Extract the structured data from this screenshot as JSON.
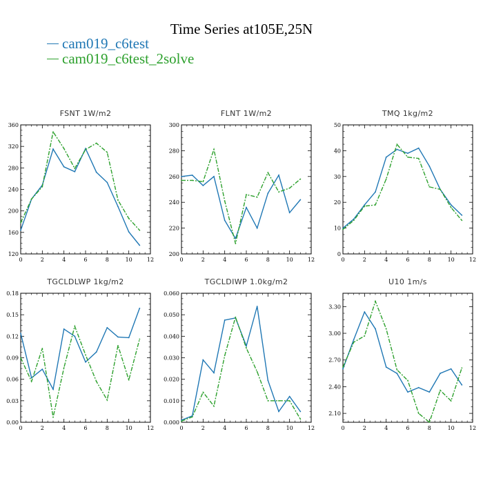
{
  "title": "Time Series at105E,25N",
  "legend": [
    {
      "name": "cam019_c6test",
      "color": "#1f77b4"
    },
    {
      "name": "cam019_c6test_2solve",
      "color": "#2ca02c"
    }
  ],
  "chart_data": [
    {
      "type": "line",
      "title": "FSNT  1W/m2",
      "xlim": [
        0,
        12
      ],
      "ylim": [
        120,
        360
      ],
      "x": [
        0,
        1,
        2,
        3,
        4,
        5,
        6,
        7,
        8,
        9,
        10,
        11
      ],
      "xticks": [
        0,
        2,
        4,
        6,
        8,
        10,
        12
      ],
      "xtick_labels": [
        "0",
        "2",
        "4",
        "6",
        "8",
        "10",
        "12"
      ],
      "yticks": [
        120,
        160,
        200,
        240,
        280,
        320,
        360
      ],
      "ytick_labels": [
        "120",
        "160",
        "200",
        "240",
        "280",
        "320",
        "360"
      ],
      "series": [
        {
          "name": "cam019_c6test",
          "values": [
            164,
            222,
            248,
            315,
            282,
            273,
            316,
            272,
            253,
            208,
            161,
            136
          ]
        },
        {
          "name": "cam019_c6test_2solve",
          "values": [
            178,
            222,
            245,
            347,
            316,
            279,
            314,
            326,
            309,
            220,
            186,
            164
          ]
        }
      ]
    },
    {
      "type": "line",
      "title": "FLNT  1W/m2",
      "xlim": [
        0,
        12
      ],
      "ylim": [
        200,
        300
      ],
      "x": [
        0,
        1,
        2,
        3,
        4,
        5,
        6,
        7,
        8,
        9,
        10,
        11
      ],
      "xticks": [
        0,
        2,
        4,
        6,
        8,
        10,
        12
      ],
      "xtick_labels": [
        "0",
        "2",
        "4",
        "6",
        "8",
        "10",
        "12"
      ],
      "yticks": [
        200,
        220,
        240,
        260,
        280,
        300
      ],
      "ytick_labels": [
        "200",
        "220",
        "240",
        "260",
        "280",
        "300"
      ],
      "series": [
        {
          "name": "cam019_c6test",
          "values": [
            260,
            261,
            253,
            260,
            226,
            212,
            236,
            220,
            247,
            261,
            232,
            242
          ]
        },
        {
          "name": "cam019_c6test_2solve",
          "values": [
            257,
            257,
            256,
            281,
            241,
            208,
            246,
            244,
            263,
            248,
            251,
            258
          ]
        }
      ]
    },
    {
      "type": "line",
      "title": "TMQ  1kg/m2",
      "xlim": [
        0,
        12
      ],
      "ylim": [
        0,
        50
      ],
      "x": [
        0,
        1,
        2,
        3,
        4,
        5,
        6,
        7,
        8,
        9,
        10,
        11
      ],
      "xticks": [
        0,
        2,
        4,
        6,
        8,
        10,
        12
      ],
      "xtick_labels": [
        "0",
        "2",
        "4",
        "6",
        "8",
        "10",
        "12"
      ],
      "yticks": [
        0,
        10,
        20,
        30,
        40,
        50
      ],
      "ytick_labels": [
        "0",
        "10",
        "20",
        "30",
        "40",
        "50"
      ],
      "series": [
        {
          "name": "cam019_c6test",
          "values": [
            10,
            13.5,
            19,
            24,
            37.5,
            40.5,
            39,
            41,
            34,
            25,
            19,
            15
          ]
        },
        {
          "name": "cam019_c6test_2solve",
          "values": [
            9.5,
            13,
            18.5,
            19,
            29,
            42.5,
            37.5,
            37,
            26,
            25,
            18,
            13
          ]
        }
      ]
    },
    {
      "type": "line",
      "title": "TGCLDLWP  1kg/m2",
      "xlim": [
        0,
        12
      ],
      "ylim": [
        0,
        0.18
      ],
      "x": [
        0,
        1,
        2,
        3,
        4,
        5,
        6,
        7,
        8,
        9,
        10,
        11
      ],
      "xticks": [
        0,
        2,
        4,
        6,
        8,
        10,
        12
      ],
      "xtick_labels": [
        "0",
        "2",
        "4",
        "6",
        "8",
        "10",
        "12"
      ],
      "yticks": [
        0,
        0.03,
        0.06,
        0.09,
        0.12,
        0.15,
        0.18
      ],
      "ytick_labels": [
        "0.00",
        "0.03",
        "0.06",
        "0.09",
        "0.12",
        "0.15",
        "0.18"
      ],
      "series": [
        {
          "name": "cam019_c6test",
          "values": [
            0.124,
            0.062,
            0.074,
            0.046,
            0.13,
            0.12,
            0.084,
            0.098,
            0.132,
            0.119,
            0.118,
            0.159
          ]
        },
        {
          "name": "cam019_c6test_2solve",
          "values": [
            0.09,
            0.057,
            0.103,
            0.007,
            0.076,
            0.134,
            0.094,
            0.057,
            0.031,
            0.107,
            0.059,
            0.116
          ]
        }
      ]
    },
    {
      "type": "line",
      "title": "TGCLDIWP  1.0kg/m2",
      "xlim": [
        0,
        12
      ],
      "ylim": [
        0,
        0.06
      ],
      "x": [
        0,
        1,
        2,
        3,
        4,
        5,
        6,
        7,
        8,
        9,
        10,
        11
      ],
      "xticks": [
        0,
        2,
        4,
        6,
        8,
        10,
        12
      ],
      "xtick_labels": [
        "0",
        "2",
        "4",
        "6",
        "8",
        "10",
        "12"
      ],
      "yticks": [
        0,
        0.01,
        0.02,
        0.03,
        0.04,
        0.05,
        0.06
      ],
      "ytick_labels": [
        "0.000",
        "0.010",
        "0.020",
        "0.030",
        "0.040",
        "0.050",
        "0.060"
      ],
      "series": [
        {
          "name": "cam019_c6test",
          "values": [
            0.001,
            0.003,
            0.029,
            0.023,
            0.0475,
            0.0485,
            0.0355,
            0.0539,
            0.0195,
            0.005,
            0.012,
            0.005
          ]
        },
        {
          "name": "cam019_c6test_2solve",
          "values": [
            0.0005,
            0.0025,
            0.014,
            0.0075,
            0.031,
            0.0489,
            0.0345,
            0.0235,
            0.01,
            0.01,
            0.01,
            0.0015
          ]
        }
      ]
    },
    {
      "type": "line",
      "title": "U10  1m/s",
      "xlim": [
        0,
        12
      ],
      "ylim": [
        2.0,
        3.45
      ],
      "x": [
        0,
        1,
        2,
        3,
        4,
        5,
        6,
        7,
        8,
        9,
        10,
        11
      ],
      "xticks": [
        0,
        2,
        4,
        6,
        8,
        10,
        12
      ],
      "xtick_labels": [
        "0",
        "2",
        "4",
        "6",
        "8",
        "10",
        "12"
      ],
      "yticks": [
        2.1,
        2.4,
        2.7,
        3.0,
        3.3
      ],
      "ytick_labels": [
        "2.10",
        "2.40",
        "2.70",
        "3.00",
        "3.30"
      ],
      "series": [
        {
          "name": "cam019_c6test",
          "values": [
            2.6,
            2.93,
            3.24,
            3.05,
            2.62,
            2.55,
            2.34,
            2.39,
            2.34,
            2.55,
            2.6,
            2.42
          ]
        },
        {
          "name": "cam019_c6test_2solve",
          "values": [
            2.62,
            2.9,
            2.97,
            3.36,
            3.05,
            2.59,
            2.47,
            2.1,
            2.0,
            2.36,
            2.24,
            2.61
          ]
        }
      ]
    }
  ]
}
